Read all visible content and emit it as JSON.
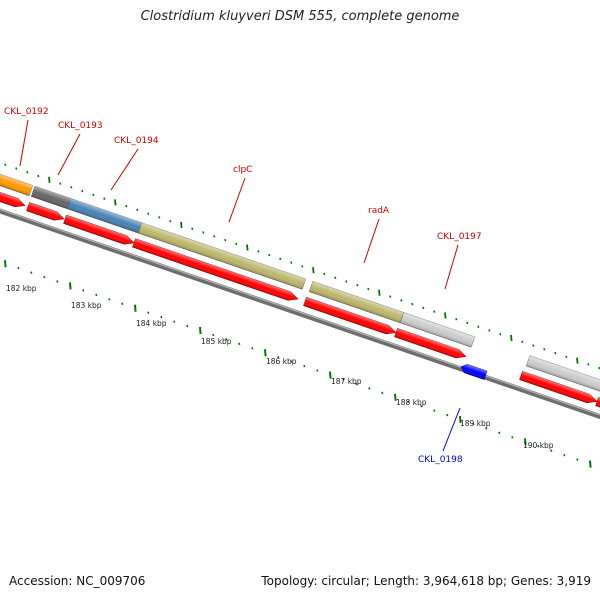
{
  "title": "Clostridium kluyveri DSM 555, complete genome",
  "footer": {
    "accession": "Accession: NC_009706",
    "topology": "Topology: circular; Length: 3,964,618 bp; Genes: 3,919"
  },
  "kbp_ticks": [
    {
      "label": "182 kbp"
    },
    {
      "label": "183 kbp"
    },
    {
      "label": "184 kbp"
    },
    {
      "label": "185 kbp"
    },
    {
      "label": "186 kbp"
    },
    {
      "label": "187 kbp"
    },
    {
      "label": "188 kbp"
    },
    {
      "label": "189 kbp"
    },
    {
      "label": "190 kbp"
    }
  ],
  "gene_labels": [
    {
      "name": "CKL_0192",
      "color": "#cc0000"
    },
    {
      "name": "CKL_0193",
      "color": "#cc0000"
    },
    {
      "name": "CKL_0194",
      "color": "#cc0000"
    },
    {
      "name": "clpC",
      "color": "#cc0000"
    },
    {
      "name": "radA",
      "color": "#cc0000"
    },
    {
      "name": "CKL_0197",
      "color": "#cc0000"
    },
    {
      "name": "CKL_0198",
      "color": "#0000cc"
    }
  ],
  "colors": {
    "cds_arrow": "#ff0000",
    "minus_strand_arrow": "#0000ff",
    "backbone": "#808080",
    "tick": "#007700",
    "orange": "#ff9900",
    "dark_gray": "#666666",
    "steel_blue": "#4682b4",
    "khaki": "#bdb76b",
    "light_gray": "#cccccc"
  }
}
